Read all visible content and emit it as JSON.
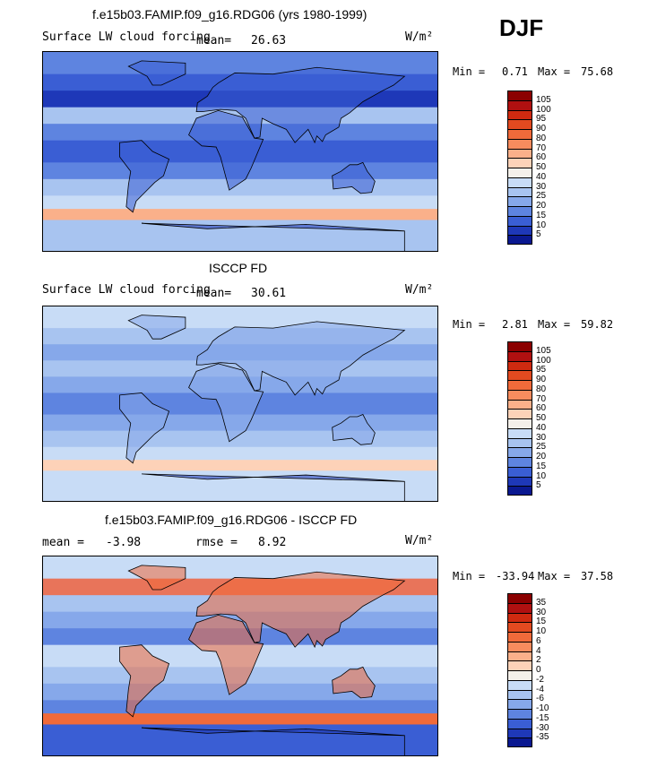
{
  "season": "DJF",
  "panels": [
    {
      "title": "f.e15b03.FAMIP.f09_g16.RDG06 (yrs 1980-1999)",
      "subtitle": "Surface LW cloud forcing",
      "mean_label": "mean=",
      "mean_value": "26.63",
      "units": "W/m²",
      "min_label": "Min =",
      "min_value": "0.71",
      "max_label": "Max =",
      "max_value": "75.68"
    },
    {
      "title": "ISCCP FD",
      "subtitle": "Surface LW cloud forcing",
      "mean_label": "mean=",
      "mean_value": "30.61",
      "units": "W/m²",
      "min_label": "Min =",
      "min_value": "2.81",
      "max_label": "Max =",
      "max_value": "59.82"
    },
    {
      "title": "f.e15b03.FAMIP.f09_g16.RDG06 - ISCCP FD",
      "mean_label": "mean =",
      "mean_value": "-3.98",
      "rmse_label": "rmse =",
      "rmse_value": "8.92",
      "units": "W/m²",
      "min_label": "Min =",
      "min_value": "-33.94",
      "max_label": "Max =",
      "max_value": "37.58"
    }
  ],
  "colorbars": {
    "absolute": {
      "levels": [
        "105",
        "100",
        "95",
        "90",
        "80",
        "70",
        "60",
        "50",
        "40",
        "30",
        "25",
        "20",
        "15",
        "10",
        "5"
      ],
      "colors": [
        "#8b0000",
        "#b01010",
        "#cf2a10",
        "#e24a20",
        "#f06a3a",
        "#f78c5e",
        "#fab08a",
        "#fdd2b8",
        "#f4f0ea",
        "#c8dcf6",
        "#a8c4f0",
        "#86a8ea",
        "#5e84e0",
        "#3a5ed4",
        "#1e38b8",
        "#0a1890"
      ]
    },
    "difference": {
      "levels": [
        "35",
        "30",
        "15",
        "10",
        "6",
        "4",
        "2",
        "0",
        "-2",
        "-4",
        "-6",
        "-10",
        "-15",
        "-30",
        "-35"
      ],
      "colors": [
        "#8b0000",
        "#b01010",
        "#cf2a10",
        "#e24a20",
        "#f06a3a",
        "#f78c5e",
        "#fab08a",
        "#fdd2b8",
        "#f4f0ea",
        "#c8dcf6",
        "#a8c4f0",
        "#86a8ea",
        "#5e84e0",
        "#3a5ed4",
        "#1e38b8",
        "#0a1890"
      ]
    }
  },
  "chart_data": [
    {
      "type": "heatmap",
      "title": "f.e15b03.FAMIP.f09_g16.RDG06 (yrs 1980-1999)",
      "subtitle": "Surface LW cloud forcing",
      "units": "W/m²",
      "mean": 26.63,
      "min": 0.71,
      "max": 75.68,
      "color_levels": [
        5,
        10,
        15,
        20,
        25,
        30,
        40,
        50,
        60,
        70,
        80,
        90,
        95,
        100,
        105
      ]
    },
    {
      "type": "heatmap",
      "title": "ISCCP FD",
      "subtitle": "Surface LW cloud forcing",
      "units": "W/m²",
      "mean": 30.61,
      "min": 2.81,
      "max": 59.82,
      "color_levels": [
        5,
        10,
        15,
        20,
        25,
        30,
        40,
        50,
        60,
        70,
        80,
        90,
        95,
        100,
        105
      ]
    },
    {
      "type": "heatmap",
      "title": "f.e15b03.FAMIP.f09_g16.RDG06 - ISCCP FD",
      "units": "W/m²",
      "mean": -3.98,
      "rmse": 8.92,
      "min": -33.94,
      "max": 37.58,
      "color_levels": [
        -35,
        -30,
        -15,
        -10,
        -6,
        -4,
        -2,
        0,
        2,
        4,
        6,
        10,
        15,
        30,
        35
      ]
    }
  ]
}
